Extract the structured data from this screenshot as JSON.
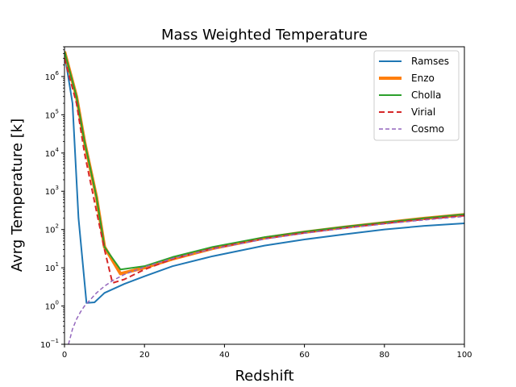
{
  "chart_data": {
    "type": "line",
    "title": "Mass Weighted Temperature",
    "xlabel": "Redshift",
    "ylabel": "Avrg Temperature [k]",
    "xlim": [
      0,
      100
    ],
    "ylim": [
      0.1,
      6000000
    ],
    "yscale": "log",
    "x_ticks": [
      "0",
      "20",
      "40",
      "60",
      "80",
      "100"
    ],
    "x_tick_values": [
      0,
      20,
      40,
      60,
      80,
      100
    ],
    "y_ticks": [
      {
        "value": 0.1,
        "base": "10",
        "exp": "−1"
      },
      {
        "value": 1,
        "base": "10",
        "exp": "0"
      },
      {
        "value": 10,
        "base": "10",
        "exp": "1"
      },
      {
        "value": 100,
        "base": "10",
        "exp": "2"
      },
      {
        "value": 1000,
        "base": "10",
        "exp": "3"
      },
      {
        "value": 10000,
        "base": "10",
        "exp": "4"
      },
      {
        "value": 100000,
        "base": "10",
        "exp": "5"
      },
      {
        "value": 1000000,
        "base": "10",
        "exp": "6"
      }
    ],
    "grid": false,
    "legend_position": "top-right",
    "series": [
      {
        "name": "Ramses",
        "color": "#1f77b4",
        "width": 2,
        "dash": "",
        "x": [
          0,
          2,
          3.5,
          5.5,
          7.5,
          10,
          15,
          20,
          27,
          37,
          50,
          60,
          70,
          80,
          90,
          100
        ],
        "y": [
          4000000,
          200000,
          200,
          1.2,
          1.25,
          2.2,
          3.8,
          6,
          11,
          20,
          38,
          55,
          75,
          100,
          125,
          145
        ]
      },
      {
        "name": "Enzo",
        "color": "#ff7f0e",
        "width": 4,
        "dash": "",
        "x": [
          0,
          3,
          5,
          8,
          10,
          14,
          20,
          27,
          37,
          50,
          60,
          70,
          80,
          90,
          100
        ],
        "y": [
          4500000,
          300000,
          20000,
          700,
          35,
          7,
          10,
          17,
          32,
          60,
          85,
          115,
          150,
          195,
          245
        ]
      },
      {
        "name": "Cholla",
        "color": "#2ca02c",
        "width": 2,
        "dash": "",
        "x": [
          0,
          3,
          5,
          8,
          10,
          14,
          20,
          27,
          37,
          50,
          60,
          70,
          80,
          90,
          100
        ],
        "y": [
          4500000,
          300000,
          20000,
          700,
          35,
          9,
          11,
          19,
          35,
          63,
          88,
          118,
          153,
          198,
          250
        ]
      },
      {
        "name": "Virial",
        "color": "#d62728",
        "width": 2,
        "dash": "7,4",
        "x": [
          0,
          3,
          5,
          8,
          10,
          12,
          15,
          20,
          27,
          37,
          50,
          60,
          70,
          80,
          90,
          100
        ],
        "y": [
          3000000,
          200000,
          10000,
          300,
          30,
          4,
          5,
          9,
          17,
          32,
          58,
          82,
          110,
          145,
          185,
          230
        ]
      },
      {
        "name": "Cosmo",
        "color": "#9467bd",
        "width": 1.5,
        "dash": "5,3",
        "x": [
          1,
          2,
          3,
          4,
          5,
          6,
          8,
          10,
          12,
          15,
          20,
          27,
          37,
          50,
          60,
          70,
          80,
          90,
          100
        ],
        "y": [
          0.1,
          0.25,
          0.45,
          0.7,
          1,
          1.3,
          2.2,
          3.3,
          4.6,
          6.7,
          10.5,
          17.5,
          31,
          56,
          80,
          107,
          140,
          178,
          220
        ]
      }
    ]
  }
}
